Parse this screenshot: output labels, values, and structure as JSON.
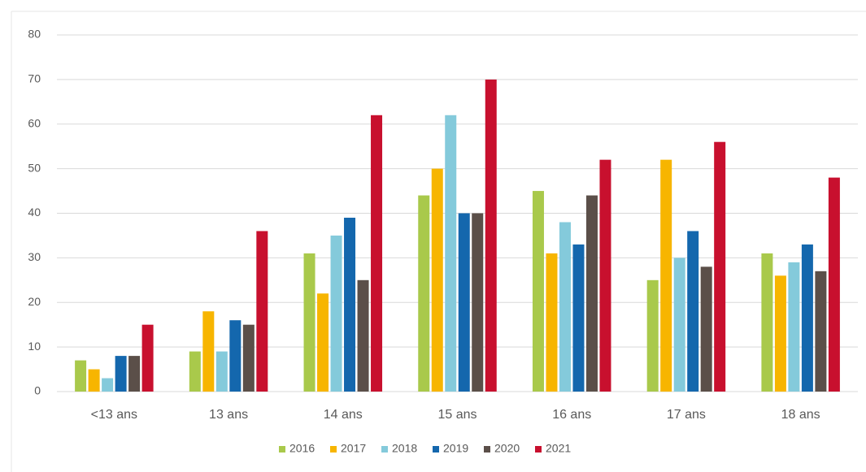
{
  "chart_data": {
    "type": "bar",
    "categories": [
      "<13 ans",
      "13 ans",
      "14 ans",
      "15 ans",
      "16 ans",
      "17 ans",
      "18 ans"
    ],
    "series": [
      {
        "name": "2016",
        "color": "#a9c94b",
        "values": [
          7,
          9,
          31,
          44,
          45,
          25,
          31
        ]
      },
      {
        "name": "2017",
        "color": "#f7b500",
        "values": [
          5,
          18,
          22,
          50,
          31,
          52,
          26
        ]
      },
      {
        "name": "2018",
        "color": "#84cadb",
        "values": [
          3,
          9,
          35,
          62,
          38,
          30,
          29
        ]
      },
      {
        "name": "2019",
        "color": "#1467ad",
        "values": [
          8,
          16,
          39,
          40,
          33,
          36,
          33
        ]
      },
      {
        "name": "2020",
        "color": "#5b4f49",
        "values": [
          8,
          15,
          25,
          40,
          44,
          28,
          27
        ]
      },
      {
        "name": "2021",
        "color": "#c8102e",
        "values": [
          15,
          36,
          62,
          70,
          52,
          56,
          48
        ]
      }
    ],
    "ylim": [
      0,
      80
    ],
    "yticks": [
      0,
      10,
      20,
      30,
      40,
      50,
      60,
      70,
      80
    ],
    "grid": true,
    "legend": "bottom"
  }
}
